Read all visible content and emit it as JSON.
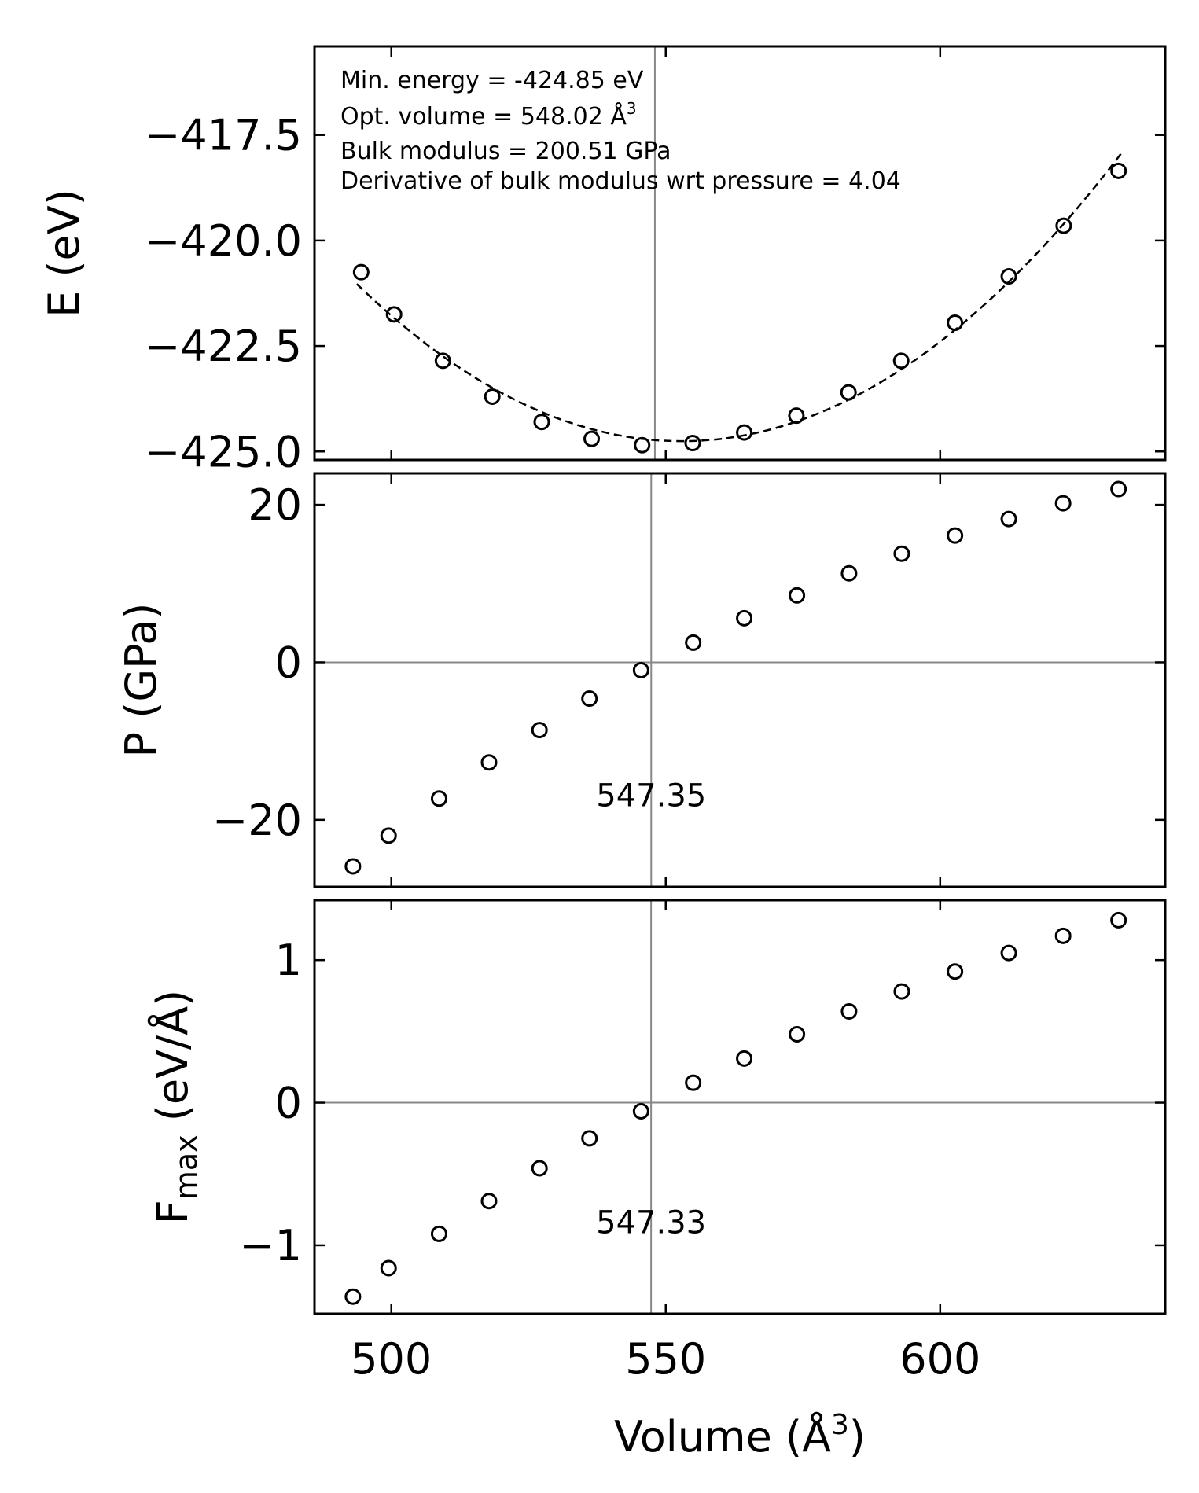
{
  "chart_data": [
    {
      "type": "scatter",
      "panel": "energy",
      "ylabel": "E (eV)",
      "xlabel": "",
      "xlim": [
        486,
        641
      ],
      "ylim": [
        -425.2,
        -415.4
      ],
      "yticks": [
        {
          "value": -417.5,
          "label": "−417.5"
        },
        {
          "value": -420.0,
          "label": "−420.0"
        },
        {
          "value": -422.5,
          "label": "−422.5"
        },
        {
          "value": -425.0,
          "label": "−425.0"
        }
      ],
      "x": [
        494.5,
        500.5,
        509.4,
        518.4,
        527.4,
        536.5,
        545.7,
        554.9,
        564.3,
        573.8,
        583.3,
        592.9,
        602.7,
        612.5,
        622.5,
        632.5
      ],
      "y": [
        -420.75,
        -421.75,
        -422.85,
        -423.7,
        -424.3,
        -424.7,
        -424.85,
        -424.8,
        -424.55,
        -424.15,
        -423.6,
        -422.85,
        -421.95,
        -420.85,
        -419.65,
        -418.35
      ],
      "fit": "dashed Birch-Murnaghan",
      "annotations": [
        "Min. energy = -424.85 eV",
        "Opt. volume = 548.02 Å",
        "Bulk modulus = 200.51 GPa",
        "Derivative of bulk modulus wrt pressure = 4.04"
      ],
      "annotation_sup": "3",
      "vline": 548.02
    },
    {
      "type": "scatter",
      "panel": "pressure",
      "ylabel": "P (GPa)",
      "xlabel": "",
      "xlim": [
        486,
        641
      ],
      "ylim": [
        -28.5,
        24.0
      ],
      "yticks": [
        {
          "value": 20,
          "label": "20"
        },
        {
          "value": 0,
          "label": "0"
        },
        {
          "value": -20,
          "label": "−20"
        }
      ],
      "x": [
        493.0,
        499.5,
        508.7,
        517.8,
        527.0,
        536.1,
        545.5,
        555.0,
        564.3,
        573.9,
        583.4,
        593.0,
        602.7,
        612.5,
        622.4,
        632.5
      ],
      "y": [
        -25.9,
        -22.0,
        -17.3,
        -12.7,
        -8.6,
        -4.6,
        -1.0,
        2.5,
        5.6,
        8.5,
        11.3,
        13.8,
        16.1,
        18.2,
        20.2,
        22.0
      ],
      "hline": 0,
      "vline": 547.35,
      "vline_label": "547.35"
    },
    {
      "type": "scatter",
      "panel": "force",
      "ylabel_main": "F",
      "ylabel_sub": "max",
      "ylabel_tail": " (eV/Å)",
      "xlabel": "Volume (Å",
      "xlabel_sup": "3",
      "xlabel_tail": ")",
      "xlim": [
        486,
        641
      ],
      "ylim": [
        -1.48,
        1.42
      ],
      "xticks": [
        {
          "value": 500,
          "label": "500"
        },
        {
          "value": 550,
          "label": "550"
        },
        {
          "value": 600,
          "label": "600"
        }
      ],
      "yticks": [
        {
          "value": 1,
          "label": "1"
        },
        {
          "value": 0,
          "label": "0"
        },
        {
          "value": -1,
          "label": "−1"
        }
      ],
      "x": [
        493.0,
        499.5,
        508.7,
        517.8,
        527.0,
        536.1,
        545.5,
        555.0,
        564.3,
        573.9,
        583.4,
        593.0,
        602.7,
        612.5,
        622.4,
        632.5
      ],
      "y": [
        -1.36,
        -1.16,
        -0.92,
        -0.69,
        -0.46,
        -0.25,
        -0.06,
        0.14,
        0.31,
        0.48,
        0.64,
        0.78,
        0.92,
        1.05,
        1.17,
        1.28
      ],
      "hline": 0,
      "vline": 547.33,
      "vline_label": "547.33"
    }
  ]
}
